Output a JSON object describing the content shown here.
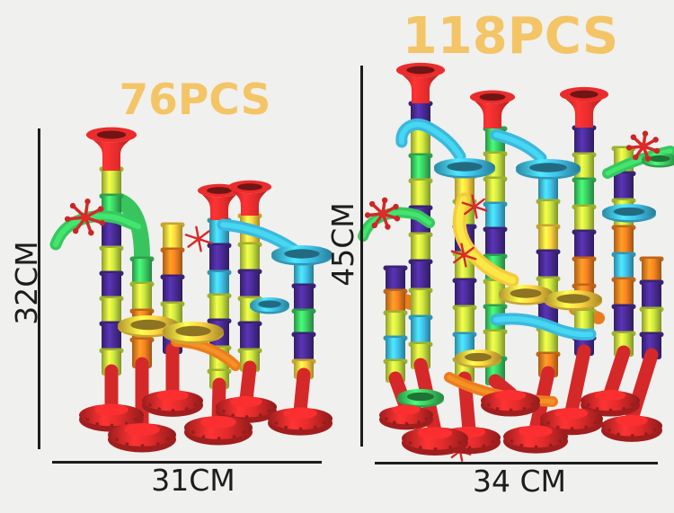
{
  "background_color": "#f0f0ee",
  "left_product": {
    "pieces_label": "76PCS",
    "height_label": "32CM",
    "width_label": "31CM"
  },
  "right_product": {
    "pieces_label": "118PCS",
    "height_label": "45CM",
    "width_label": "34 CM"
  },
  "colors": {
    "accent_gold": "#f4c566",
    "dimension_ink": "#1d1d1d",
    "toy_red": "#e02a2a",
    "toy_green": "#3bcf63",
    "toy_lime": "#c9e43e",
    "toy_purple": "#4a2b96",
    "toy_blue": "#3fc0e8",
    "toy_orange": "#f58220",
    "toy_yellow": "#ffd23f"
  }
}
